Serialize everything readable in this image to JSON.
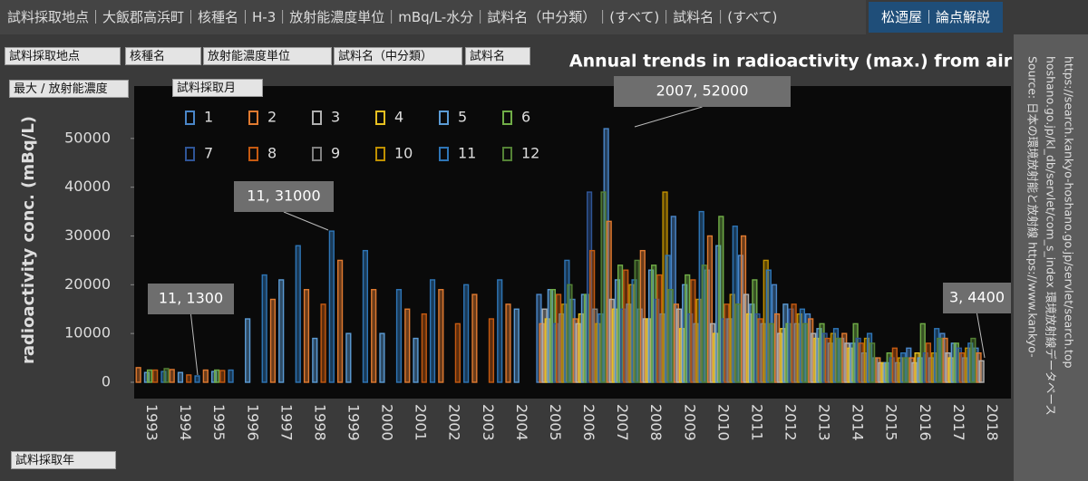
{
  "header": {
    "filters": "試料採取地点｜大飯郡高浜町｜核種名｜H-3｜放射能濃度単位｜mBq/L-水分｜試料名（中分類）｜(すべて)｜試料名｜(すべて)",
    "button": "松迺屋｜論点解説"
  },
  "controls": [
    "試料採取地点",
    "核種名",
    "放射能濃度単位",
    "試料名（中分類）",
    "試料名",
    "最大 / 放射能濃度",
    "試料採取月",
    "試料採取年"
  ],
  "source": [
    "Source: 日本の環境放射能と放射線 https://www.kankyo-",
    "hoshano.go.jp/kl_db/servlet/com_s_index 環境放射線データベース",
    "https://search.kankyo-hoshano.go.jp/servlet/search.top"
  ],
  "chart_data": {
    "type": "bar",
    "title": "Annual trends in radioactivity (max.) from air",
    "y_label": "radioactivity conc. (mBq/L)",
    "categories": [
      "1993",
      "1994",
      "1995",
      "1996",
      "1997",
      "1998",
      "1999",
      "2000",
      "2001",
      "2002",
      "2003",
      "2004",
      "2005",
      "2006",
      "2007",
      "2008",
      "2009",
      "2010",
      "2011",
      "2012",
      "2013",
      "2014",
      "2015",
      "2016",
      "2017",
      "2018"
    ],
    "ylim": [
      0,
      60000
    ],
    "yticks": [
      0,
      10000,
      20000,
      30000,
      40000,
      50000
    ],
    "annotations": [
      "11, 1300",
      "11, 31000",
      "2007, 52000",
      "3, 4400"
    ],
    "series": [
      {
        "name": "1",
        "color": "#4a86c8",
        "values": [
          null,
          null,
          null,
          null,
          null,
          null,
          null,
          null,
          null,
          null,
          null,
          null,
          18000,
          17000,
          52000,
          15000,
          34000,
          23000,
          26000,
          20000,
          14000,
          9000,
          5000,
          7000,
          10000,
          7000
        ]
      },
      {
        "name": "2",
        "color": "#e07a30",
        "values": [
          3000,
          2600,
          2500,
          null,
          17000,
          19000,
          25000,
          19000,
          15000,
          19000,
          18000,
          16000,
          12000,
          13000,
          33000,
          27000,
          16000,
          30000,
          30000,
          14000,
          13000,
          10000,
          5000,
          5000,
          9000,
          6000
        ]
      },
      {
        "name": "3",
        "color": "#b0b0b0",
        "values": [
          null,
          null,
          null,
          null,
          null,
          null,
          null,
          null,
          null,
          null,
          null,
          null,
          15000,
          12000,
          17000,
          13000,
          15000,
          12000,
          18000,
          10000,
          10000,
          8000,
          4000,
          4000,
          6000,
          4400
        ]
      },
      {
        "name": "4",
        "color": "#e8c020",
        "values": [
          null,
          null,
          null,
          null,
          null,
          null,
          null,
          null,
          null,
          null,
          null,
          null,
          13000,
          14000,
          15000,
          13000,
          11000,
          10000,
          14000,
          11000,
          9000,
          7000,
          4000,
          6000,
          5000,
          null
        ]
      },
      {
        "name": "5",
        "color": "#5b9bd5",
        "values": [
          2000,
          2000,
          2200,
          13000,
          21000,
          9000,
          10000,
          10000,
          9000,
          null,
          null,
          15000,
          19000,
          18000,
          21000,
          23000,
          20000,
          28000,
          16000,
          16000,
          11000,
          8000,
          4000,
          5000,
          8000,
          null
        ]
      },
      {
        "name": "6",
        "color": "#70ad47",
        "values": [
          2500,
          null,
          2500,
          null,
          null,
          null,
          null,
          null,
          null,
          null,
          null,
          null,
          19000,
          18000,
          24000,
          24000,
          22000,
          34000,
          21000,
          12000,
          12000,
          12000,
          6000,
          12000,
          8000,
          null
        ]
      },
      {
        "name": "7",
        "color": "#2f5597",
        "values": [
          null,
          null,
          null,
          null,
          null,
          null,
          null,
          null,
          null,
          null,
          null,
          null,
          12000,
          39000,
          15000,
          17000,
          14000,
          13000,
          14000,
          15000,
          10000,
          9000,
          5000,
          6000,
          7000,
          null
        ]
      },
      {
        "name": "8",
        "color": "#c55a11",
        "values": [
          2500,
          1500,
          2400,
          null,
          null,
          16000,
          null,
          null,
          14000,
          12000,
          13000,
          null,
          18000,
          27000,
          23000,
          22000,
          21000,
          16000,
          13000,
          16000,
          9000,
          8000,
          7000,
          8000,
          6000,
          null
        ]
      },
      {
        "name": "9",
        "color": "#808080",
        "values": [
          null,
          null,
          null,
          null,
          null,
          null,
          null,
          null,
          null,
          null,
          null,
          null,
          14000,
          15000,
          16000,
          14000,
          12000,
          13000,
          12000,
          12000,
          8000,
          6000,
          4000,
          5000,
          5000,
          null
        ]
      },
      {
        "name": "10",
        "color": "#bf9000",
        "values": [
          null,
          null,
          null,
          null,
          null,
          null,
          null,
          null,
          null,
          null,
          null,
          null,
          16000,
          12000,
          20000,
          39000,
          17000,
          18000,
          25000,
          14000,
          10000,
          9000,
          5000,
          6000,
          7000,
          null
        ]
      },
      {
        "name": "11",
        "color": "#2e75b6",
        "values": [
          2200,
          1300,
          2500,
          22000,
          28000,
          31000,
          27000,
          19000,
          21000,
          20000,
          21000,
          null,
          25000,
          14000,
          21000,
          26000,
          35000,
          32000,
          23000,
          15000,
          11000,
          10000,
          6000,
          11000,
          8000,
          null
        ]
      },
      {
        "name": "12",
        "color": "#548235",
        "values": [
          2800,
          null,
          null,
          null,
          null,
          null,
          null,
          null,
          null,
          null,
          null,
          null,
          20000,
          39000,
          25000,
          19000,
          24000,
          16000,
          12000,
          12000,
          9000,
          8000,
          5000,
          9000,
          9000,
          null
        ]
      }
    ]
  }
}
